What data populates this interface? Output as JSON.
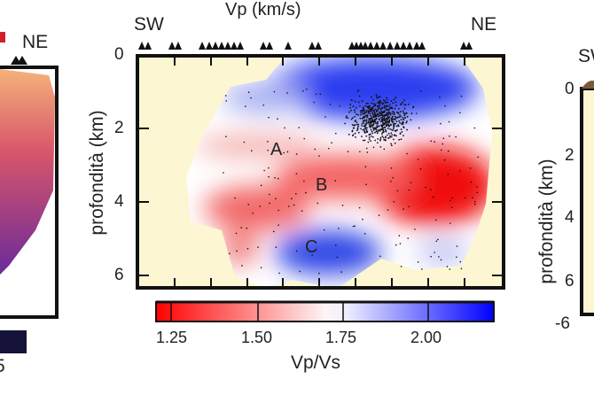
{
  "chart_data": {
    "type": "heatmap",
    "title": "Vp (km/s)",
    "ylabel": "profondità (km)",
    "xlabel": "",
    "ylim": [
      0,
      6.4
    ],
    "yticks": [
      "0",
      "2",
      "4",
      "6"
    ],
    "profile_ends": {
      "left": "SW",
      "right": "NE"
    },
    "annotations": [
      "A",
      "B",
      "C"
    ],
    "colorbar": {
      "label": "Vp/Vs",
      "range": [
        1.17,
        2.18
      ],
      "ticks": [
        "1.25",
        "1.50",
        "1.75",
        "2.00"
      ],
      "colors": {
        "low": "#ff0000",
        "mid": "#ffffff",
        "high": "#0000ff"
      }
    },
    "background_color": "#fdf6d2",
    "grid": false
  },
  "left_panel": {
    "end_label": "NE",
    "tick_fragment": "5"
  },
  "right_panel": {
    "end_label": "SW",
    "ytick0": "0",
    "ytick2": "2",
    "ytick4": "4",
    "ytick6": "6",
    "xtick": "-6",
    "ylabel": "profondità (km)"
  }
}
